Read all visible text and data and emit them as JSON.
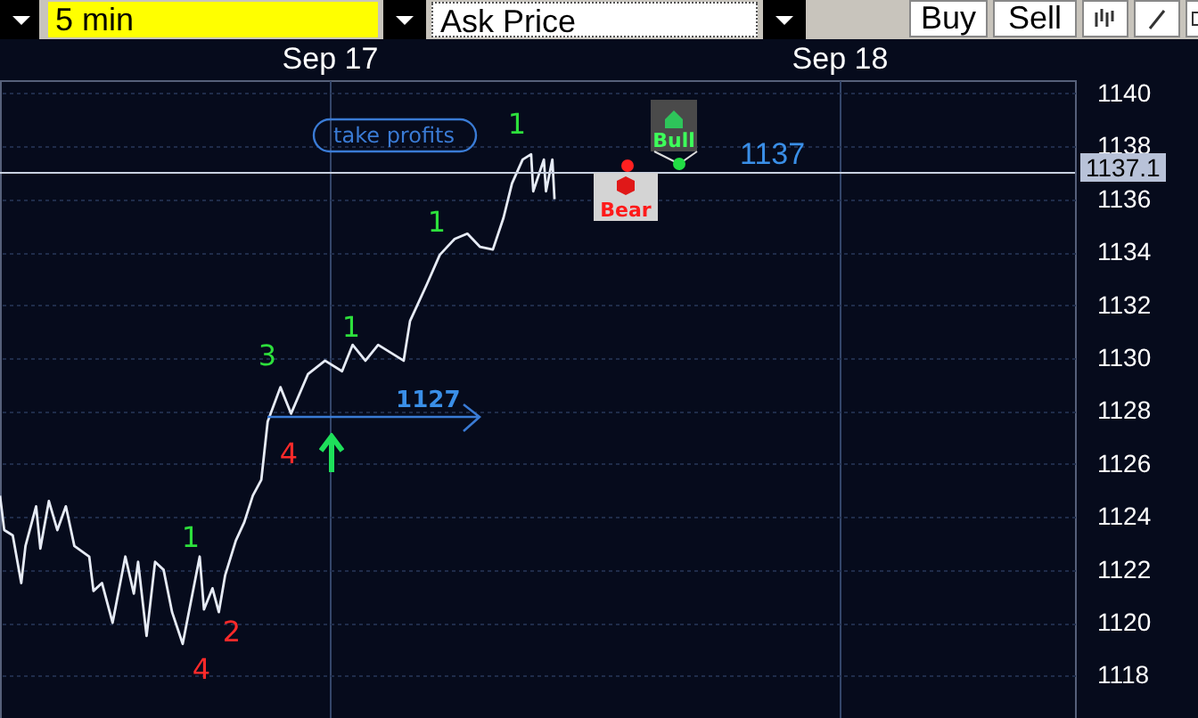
{
  "chart_data": {
    "type": "line",
    "xlim": [
      "--09-16T08:30",
      "--09-18T11:06"
    ],
    "xticks": [
      {
        "value": "--09-17",
        "label": "Sep 17"
      },
      {
        "value": "--09-18",
        "label": "Sep 18"
      }
    ],
    "ylim": [
      1116.4,
      1140.5
    ],
    "yticks": [
      1118,
      1120,
      1122,
      1124,
      1126,
      1128,
      1130,
      1132,
      1134,
      1136,
      1138,
      1140
    ],
    "grid": true,
    "series": [
      {
        "color": "#e6ebf5",
        "x": [
          "--09-16T08:30",
          "--09-16T08:42",
          "--09-16T09:06",
          "--09-16T09:30",
          "--09-16T09:42",
          "--09-16T10:12",
          "--09-16T10:24",
          "--09-16T10:48",
          "--09-16T11:12",
          "--09-16T11:36",
          "--09-16T12:00",
          "--09-16T12:42",
          "--09-16T12:54",
          "--09-16T13:18",
          "--09-16T13:48",
          "--09-16T14:24",
          "--09-16T14:48",
          "--09-16T15:00",
          "--09-16T15:24",
          "--09-16T15:48",
          "--09-16T16:12",
          "--09-16T16:36",
          "--09-16T17:06",
          "--09-16T17:54",
          "--09-16T18:06",
          "--09-16T18:30",
          "--09-16T18:48",
          "--09-16T19:06",
          "--09-16T19:36",
          "--09-16T20:00",
          "--09-16T20:24",
          "--09-16T20:48",
          "--09-16T21:06",
          "--09-16T21:42",
          "--09-16T22:12",
          "--09-16T23:00",
          "--09-16T23:48",
          "--09-17T00:36",
          "--09-17T01:06",
          "--09-17T01:42",
          "--09-17T02:18",
          "--09-17T03:30",
          "--09-17T03:48",
          "--09-17T04:36",
          "--09-17T05:12",
          "--09-17T05:54",
          "--09-17T06:30",
          "--09-17T07:06",
          "--09-17T07:42",
          "--09-17T08:12",
          "--09-17T08:36",
          "--09-17T09:06",
          "--09-17T09:30",
          "--09-17T09:36",
          "--09-17T10:06",
          "--09-17T10:12",
          "--09-17T10:30",
          "--09-17T10:36"
        ],
        "values": [
          1124.8,
          1123.5,
          1123.3,
          1121.5,
          1122.9,
          1124.4,
          1122.8,
          1124.6,
          1123.5,
          1124.4,
          1122.9,
          1122.5,
          1121.2,
          1121.5,
          1120.0,
          1122.5,
          1121.1,
          1122.3,
          1119.5,
          1122.3,
          1122.0,
          1120.4,
          1119.2,
          1122.5,
          1120.5,
          1121.3,
          1120.4,
          1121.8,
          1123.1,
          1123.8,
          1124.8,
          1125.4,
          1127.6,
          1128.9,
          1127.9,
          1129.4,
          1129.9,
          1129.5,
          1130.5,
          1129.9,
          1130.5,
          1129.9,
          1131.4,
          1132.8,
          1133.9,
          1134.5,
          1134.7,
          1134.2,
          1134.1,
          1135.3,
          1136.6,
          1137.5,
          1137.7,
          1136.3,
          1137.5,
          1136.3,
          1137.5,
          1136.0
        ]
      }
    ],
    "ref_lines": [
      {
        "axis": "y",
        "value": 1137,
        "label": "1137",
        "color": "#c8d0e0"
      }
    ],
    "annotations": [
      "5 min",
      "Ask Price",
      "Buy",
      "Sell",
      "take profits",
      "1",
      "2",
      "4",
      "4",
      "3",
      "1",
      "1",
      "1",
      {
        "text": "1127",
        "x": "--09-16T21:06",
        "y": 1127.6
      },
      "Bear",
      "Bull",
      "1137.1"
    ]
  }
}
